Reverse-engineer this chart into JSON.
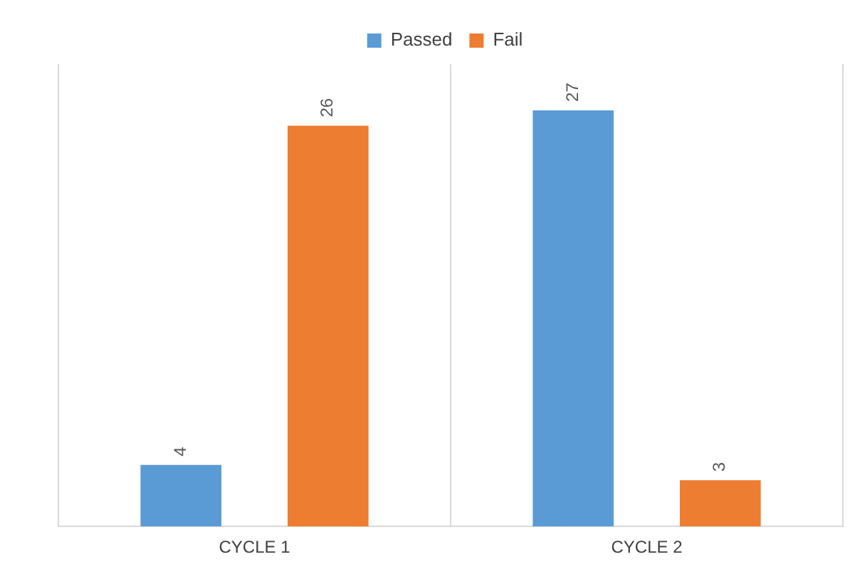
{
  "chart_data": {
    "type": "bar",
    "categories": [
      "CYCLE 1",
      "CYCLE 2"
    ],
    "series": [
      {
        "name": "Passed",
        "color": "#5b9bd5",
        "values": [
          4,
          27
        ]
      },
      {
        "name": "Fail",
        "color": "#ed7d31",
        "values": [
          26,
          3
        ]
      }
    ],
    "relative": false,
    "data_labels": true,
    "grid": "x",
    "legend": "top"
  }
}
